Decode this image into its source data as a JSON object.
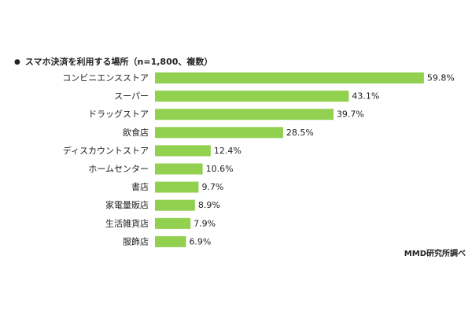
{
  "chart_data": {
    "type": "bar",
    "orientation": "horizontal",
    "title": "スマホ決済を利用する場所（n=1,800、複数）",
    "title_bullet": "●",
    "categories": [
      "コンビニエンスストア",
      "スーパー",
      "ドラッグストア",
      "飲食店",
      "ディスカウントストア",
      "ホームセンター",
      "書店",
      "家電量販店",
      "生活雑貨店",
      "服飾店"
    ],
    "values": [
      59.8,
      43.1,
      39.7,
      28.5,
      12.4,
      10.6,
      9.7,
      8.9,
      7.9,
      6.9
    ],
    "value_labels": [
      "59.8%",
      "43.1%",
      "39.7%",
      "28.5%",
      "12.4%",
      "10.6%",
      "9.7%",
      "8.9%",
      "7.9%",
      "6.9%"
    ],
    "unit": "%",
    "xlim": [
      0,
      60
    ],
    "grid": false,
    "bar_color": "#92D050",
    "source": "MMD研究所調べ"
  }
}
